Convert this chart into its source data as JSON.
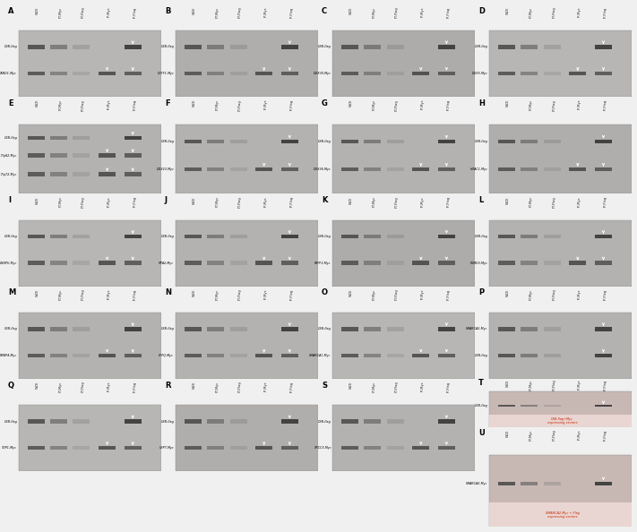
{
  "figure_width": 7.11,
  "figure_height": 5.94,
  "bg": "#f0f0f0",
  "col_labels": [
    "WCE",
    "FT-Myc",
    "FT-Flag",
    "IP-Myc",
    "IP-Flag"
  ],
  "panels": [
    {
      "id": "A",
      "r": 0,
      "c": 0,
      "labels": [
        "CSB-flag",
        "CAND1-Myc"
      ],
      "gbg": "#b8b6b4"
    },
    {
      "id": "B",
      "r": 0,
      "c": 1,
      "labels": [
        "CSB-flag",
        "CSTF1-Myc"
      ],
      "gbg": "#b0aeac"
    },
    {
      "id": "C",
      "r": 0,
      "c": 2,
      "labels": [
        "CSB-flag",
        "DDX3X-Myc"
      ],
      "gbg": "#aeacaa"
    },
    {
      "id": "D",
      "r": 0,
      "c": 3,
      "labels": [
        "CSB-flag",
        "DDX5-Myc"
      ],
      "gbg": "#b8b6b4"
    },
    {
      "id": "E",
      "r": 1,
      "c": 0,
      "labels": [
        "CSB-flag",
        "DDX17/p82-Myc",
        "DDX17/p72-Myc"
      ],
      "gbg": "#b4b2b0"
    },
    {
      "id": "F",
      "r": 1,
      "c": 1,
      "labels": [
        "CSB-flag",
        "DDX23-Myc"
      ],
      "gbg": "#b4b2b0"
    },
    {
      "id": "G",
      "r": 1,
      "c": 2,
      "labels": [
        "CSB-flag",
        "DHX36-Myc"
      ],
      "gbg": "#b4b2b0"
    },
    {
      "id": "H",
      "r": 1,
      "c": 3,
      "labels": [
        "CSB-flag",
        "HDAC1-Myc"
      ],
      "gbg": "#b0aeac"
    },
    {
      "id": "I",
      "r": 2,
      "c": 0,
      "labels": [
        "CSB-flag",
        "HNRNPU-Myc"
      ],
      "gbg": "#b8b6b4"
    },
    {
      "id": "J",
      "r": 2,
      "c": 1,
      "labels": [
        "CSB-flag",
        "MTA2-Myc"
      ],
      "gbg": "#b4b2b0"
    },
    {
      "id": "K",
      "r": 2,
      "c": 2,
      "labels": [
        "CSB-flag",
        "PRPF3-Myc"
      ],
      "gbg": "#aeacaa"
    },
    {
      "id": "L",
      "r": 2,
      "c": 3,
      "labels": [
        "CSB-flag",
        "PSMD3-Myc"
      ],
      "gbg": "#b4b2b0"
    },
    {
      "id": "M",
      "r": 3,
      "c": 0,
      "labels": [
        "CSB-flag",
        "RBBP4-Myc"
      ],
      "gbg": "#b4b2b0"
    },
    {
      "id": "N",
      "r": 3,
      "c": 1,
      "labels": [
        "CSB-flag",
        "SFPQ-Myc"
      ],
      "gbg": "#b4b2b0"
    },
    {
      "id": "O",
      "r": 3,
      "c": 2,
      "labels": [
        "CSB-flag",
        "SMARCA1-Myc"
      ],
      "gbg": "#b8b6b4"
    },
    {
      "id": "P",
      "r": 3,
      "c": 3,
      "labels": [
        "SMARCA2-Myc",
        "CSB-flag"
      ],
      "gbg": "#b4b2b0"
    },
    {
      "id": "Q",
      "r": 4,
      "c": 0,
      "labels": [
        "CSB-flag",
        "TOP1-Myc"
      ],
      "gbg": "#b8b6b4"
    },
    {
      "id": "R",
      "r": 4,
      "c": 1,
      "labels": [
        "CSB-flag",
        "USP7-Myc"
      ],
      "gbg": "#b0aeac"
    },
    {
      "id": "S",
      "r": 4,
      "c": 2,
      "labels": [
        "CSB-flag",
        "XRCC5-Myc"
      ],
      "gbg": "#b4b2b0"
    },
    {
      "id": "T",
      "r": 4,
      "c": 3,
      "sub": "T",
      "labels": [
        "CSB-flag"
      ],
      "gbg": "#c8b8b4",
      "note": "CSB-flag+Myc\nexpressing vectors",
      "note_color": "#cc2200"
    },
    {
      "id": "U",
      "r": 5,
      "c": 3,
      "sub": "U",
      "labels": [
        "SMARCA2-Myc"
      ],
      "gbg": "#c8b8b4",
      "note": "SMARCA2-Myc + Flag\nexpressing vectors",
      "note_color": "#cc2200"
    }
  ]
}
